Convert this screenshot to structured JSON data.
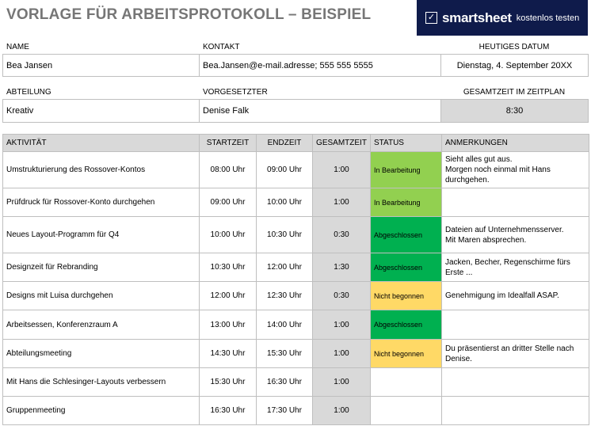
{
  "title": "VORLAGE FÜR ARBEITSPROTOKOLL – BEISPIEL",
  "logo": {
    "icon": "smartsheet-check-icon",
    "brand": "smartsheet",
    "cta": "kostenlos testen",
    "bg_color": "#0f1b4b"
  },
  "header": {
    "name_label": "NAME",
    "name_value": "Bea Jansen",
    "contact_label": "KONTAKT",
    "contact_value": "Bea.Jansen@e-mail.adresse; 555 555 5555",
    "date_label": "HEUTIGES DATUM",
    "date_value": "Dienstag, 4. September 20XX",
    "dept_label": "ABTEILUNG",
    "dept_value": "Kreativ",
    "supervisor_label": "VORGESETZTER",
    "supervisor_value": "Denise Falk",
    "total_label": "GESAMTZEIT IM ZEITPLAN",
    "total_value": "8:30"
  },
  "table": {
    "headers": [
      "AKTIVITÄT",
      "STARTZEIT",
      "ENDZEIT",
      "GESAMTZEIT",
      "STATUS",
      "ANMERKUNGEN"
    ],
    "status_colors": {
      "In Bearbeitung": "#92d050",
      "Abgeschlossen": "#00b050",
      "Nicht begonnen": "#ffd966"
    },
    "rows": [
      {
        "activity": "Umstrukturierung des Rossover-Kontos",
        "start": "08:00 Uhr",
        "end": "09:00 Uhr",
        "total": "1:00",
        "status": "In Bearbeitung",
        "notes": [
          "Sieht alles gut aus.",
          "Morgen noch einmal mit Hans",
          "durchgehen."
        ]
      },
      {
        "activity": "Prüfdruck für Rossover-Konto durchgehen",
        "start": "09:00 Uhr",
        "end": "10:00 Uhr",
        "total": "1:00",
        "status": "In Bearbeitung",
        "notes": []
      },
      {
        "activity": "Neues Layout-Programm für Q4",
        "start": "10:00 Uhr",
        "end": "10:30 Uhr",
        "total": "0:30",
        "status": "Abgeschlossen",
        "notes": [
          "Dateien auf Unternehmensserver.",
          "Mit Maren absprechen."
        ]
      },
      {
        "activity": "Designzeit für Rebranding",
        "start": "10:30 Uhr",
        "end": "12:00 Uhr",
        "total": "1:30",
        "status": "Abgeschlossen",
        "notes": [
          "Jacken, Becher, Regenschirme fürs",
          "Erste ..."
        ]
      },
      {
        "activity": "Designs mit Luisa durchgehen",
        "start": "12:00 Uhr",
        "end": "12:30 Uhr",
        "total": "0:30",
        "status": "Nicht begonnen",
        "notes": [
          "Genehmigung im Idealfall ASAP."
        ]
      },
      {
        "activity": "Arbeitsessen, Konferenzraum A",
        "start": "13:00 Uhr",
        "end": "14:00 Uhr",
        "total": "1:00",
        "status": "Abgeschlossen",
        "notes": []
      },
      {
        "activity": "Abteilungsmeeting",
        "start": "14:30 Uhr",
        "end": "15:30 Uhr",
        "total": "1:00",
        "status": "Nicht begonnen",
        "notes": [
          "Du präsentierst an dritter Stelle nach",
          "Denise."
        ]
      },
      {
        "activity": "Mit Hans die Schlesinger-Layouts verbessern",
        "start": "15:30 Uhr",
        "end": "16:30 Uhr",
        "total": "1:00",
        "status": "",
        "notes": []
      },
      {
        "activity": "Gruppenmeeting",
        "start": "16:30 Uhr",
        "end": "17:30 Uhr",
        "total": "1:00",
        "status": "",
        "notes": []
      }
    ]
  }
}
